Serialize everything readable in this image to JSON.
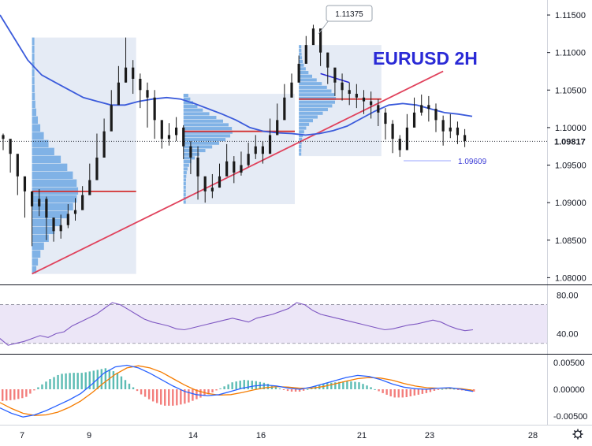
{
  "chart_data": {
    "type": "candlestick",
    "title": "EURUSD 2H",
    "price_axis": {
      "ticks": [
        "1.11500",
        "1.11000",
        "1.10500",
        "1.10000",
        "1.09500",
        "1.09000",
        "1.08500",
        "1.08000"
      ],
      "ylim": [
        1.0792,
        1.117
      ],
      "current_price": "1.09817"
    },
    "time_axis": {
      "ticks": [
        "7",
        "9",
        "14",
        "16",
        "21",
        "23",
        "28"
      ]
    },
    "annotations": {
      "high_callout": "1.11375",
      "low_label": "1.09609"
    },
    "price_series": {
      "name": "EURUSD",
      "close": [
        1.0985,
        1.0965,
        1.0935,
        1.0915,
        1.0895,
        1.0905,
        1.088,
        1.0862,
        1.087,
        1.0885,
        1.089,
        1.091,
        1.093,
        1.096,
        1.0995,
        1.103,
        1.106,
        1.108,
        1.1065,
        1.105,
        1.104,
        1.101,
        1.0985,
        1.099,
        1.1,
        1.0975,
        1.096,
        1.0935,
        1.0915,
        1.092,
        1.0935,
        1.0955,
        1.094,
        1.095,
        1.0965,
        1.0975,
        1.0965,
        1.099,
        1.101,
        1.104,
        1.106,
        1.1085,
        1.111,
        1.1132,
        1.11,
        1.108,
        1.106,
        1.105,
        1.1045,
        1.104,
        1.1035,
        1.103,
        1.102,
        1.1005,
        1.0985,
        1.097,
        1.1,
        1.102,
        1.103,
        1.1025,
        1.101,
        1.0995,
        1.1,
        1.099,
        1.0982
      ],
      "high": [
        1.0992,
        1.0975,
        1.0955,
        1.093,
        1.0912,
        1.0918,
        1.0908,
        1.088,
        1.0884,
        1.0898,
        1.0906,
        1.0922,
        1.0952,
        1.0992,
        1.1012,
        1.105,
        1.1082,
        1.112,
        1.109,
        1.1072,
        1.106,
        1.105,
        1.1003,
        1.1006,
        1.1014,
        1.1003,
        1.0982,
        1.0975,
        1.0935,
        1.0938,
        1.0952,
        1.0978,
        1.0962,
        1.0968,
        1.098,
        1.099,
        1.0982,
        1.1012,
        1.1032,
        1.1058,
        1.1072,
        1.1096,
        1.1122,
        1.1137,
        1.1125,
        1.11,
        1.1078,
        1.1072,
        1.106,
        1.1058,
        1.105,
        1.1048,
        1.1038,
        1.1026,
        1.101,
        1.099,
        1.1018,
        1.104,
        1.1044,
        1.1042,
        1.1032,
        1.1016,
        1.1018,
        1.1008,
        1.0998
      ],
      "low": [
        1.097,
        1.094,
        1.091,
        1.088,
        1.0842,
        1.0882,
        1.085,
        1.0848,
        1.0852,
        1.0866,
        1.0876,
        1.0896,
        1.0914,
        1.0942,
        1.0966,
        1.1,
        1.104,
        1.106,
        1.1045,
        1.1026,
        1.1,
        1.0985,
        1.0972,
        1.0976,
        1.0982,
        1.0958,
        1.0938,
        1.0904,
        1.09,
        1.0906,
        1.092,
        1.0938,
        1.0926,
        1.0936,
        1.0948,
        1.0958,
        1.0952,
        1.0972,
        1.0994,
        1.1022,
        1.104,
        1.106,
        1.109,
        1.1112,
        1.1082,
        1.1058,
        1.1042,
        1.1036,
        1.103,
        1.1026,
        1.1018,
        1.1012,
        1.1002,
        1.0984,
        1.0966,
        1.0961,
        1.0982,
        1.1002,
        1.1016,
        1.1008,
        1.0994,
        1.0976,
        1.0986,
        1.0978,
        1.0974
      ]
    },
    "moving_average": {
      "values": [
        1.115,
        1.112,
        1.109,
        1.107,
        1.106,
        1.105,
        1.104,
        1.1035,
        1.103,
        1.103,
        1.1035,
        1.1038,
        1.104,
        1.1038,
        1.1032,
        1.1025,
        1.1018,
        1.101,
        1.1,
        1.0995,
        1.0993,
        1.0992,
        1.099,
        1.0992,
        1.0996,
        1.1002,
        1.1012,
        1.1022,
        1.103,
        1.1032,
        1.103,
        1.1025,
        1.102,
        1.1018,
        1.1015
      ]
    },
    "volume_profile": {
      "ranges": [
        {
          "from_bar": 4,
          "to_bar": 18,
          "price_low": 1.0805,
          "price_high": 1.112,
          "poc": 1.0915
        },
        {
          "from_bar": 25,
          "to_bar": 40,
          "price_low": 1.0898,
          "price_high": 1.1045,
          "poc": 1.0995
        },
        {
          "from_bar": 41,
          "to_bar": 52,
          "price_low": 1.0962,
          "price_high": 1.111,
          "poc": 1.1038
        }
      ]
    },
    "trendline": {
      "from": {
        "bar": 4,
        "price": 1.0805
      },
      "to": {
        "bar": 61,
        "price": 1.1075
      }
    },
    "wedge_line": {
      "from": {
        "bar": 44,
        "price": 1.1072
      },
      "to": {
        "bar": 48,
        "price": 1.106
      }
    },
    "rsi": {
      "ticks": [
        "80.00",
        "40.00"
      ],
      "ylim": [
        20,
        90
      ],
      "band": [
        30,
        70
      ],
      "values": [
        35,
        28,
        30,
        32,
        35,
        38,
        36,
        40,
        42,
        48,
        52,
        56,
        60,
        66,
        72,
        70,
        65,
        60,
        55,
        52,
        50,
        48,
        45,
        44,
        46,
        48,
        50,
        52,
        54,
        56,
        54,
        52,
        56,
        58,
        60,
        63,
        66,
        72,
        70,
        64,
        60,
        58,
        56,
        54,
        52,
        50,
        48,
        46,
        44,
        45,
        47,
        49,
        50,
        52,
        54,
        52,
        48,
        45,
        43,
        44
      ]
    },
    "macd": {
      "ticks": [
        "0.00500",
        "0.00000",
        "-0.00500"
      ],
      "ylim": [
        -0.0065,
        0.0065
      ],
      "macd_line": [
        -0.0035,
        -0.0045,
        -0.0052,
        -0.0048,
        -0.004,
        -0.003,
        -0.002,
        -0.0008,
        0.001,
        0.003,
        0.0042,
        0.0045,
        0.004,
        0.003,
        0.0018,
        0.0006,
        -0.0004,
        -0.001,
        -0.0012,
        -0.001,
        -0.0004,
        0.0002,
        0.0006,
        0.0008,
        0.0006,
        0.0002,
        0.0,
        0.0004,
        0.001,
        0.0016,
        0.0022,
        0.0026,
        0.0024,
        0.0018,
        0.001,
        0.0004,
        0.0001,
        0.0,
        0.0002,
        0.0003,
        0.0,
        -0.0004
      ],
      "signal_line": [
        -0.0025,
        -0.0036,
        -0.0045,
        -0.0049,
        -0.0048,
        -0.0043,
        -0.0034,
        -0.0022,
        -0.0006,
        0.0012,
        0.0028,
        0.004,
        0.0044,
        0.004,
        0.0032,
        0.002,
        0.0008,
        -0.0002,
        -0.0008,
        -0.0011,
        -0.001,
        -0.0006,
        -0.0001,
        0.0003,
        0.0005,
        0.0004,
        0.0002,
        0.0002,
        0.0005,
        0.001,
        0.0015,
        0.002,
        0.0022,
        0.0021,
        0.0017,
        0.0011,
        0.0006,
        0.0003,
        0.0002,
        0.0002,
        0.0001,
        -0.0002
      ]
    }
  }
}
